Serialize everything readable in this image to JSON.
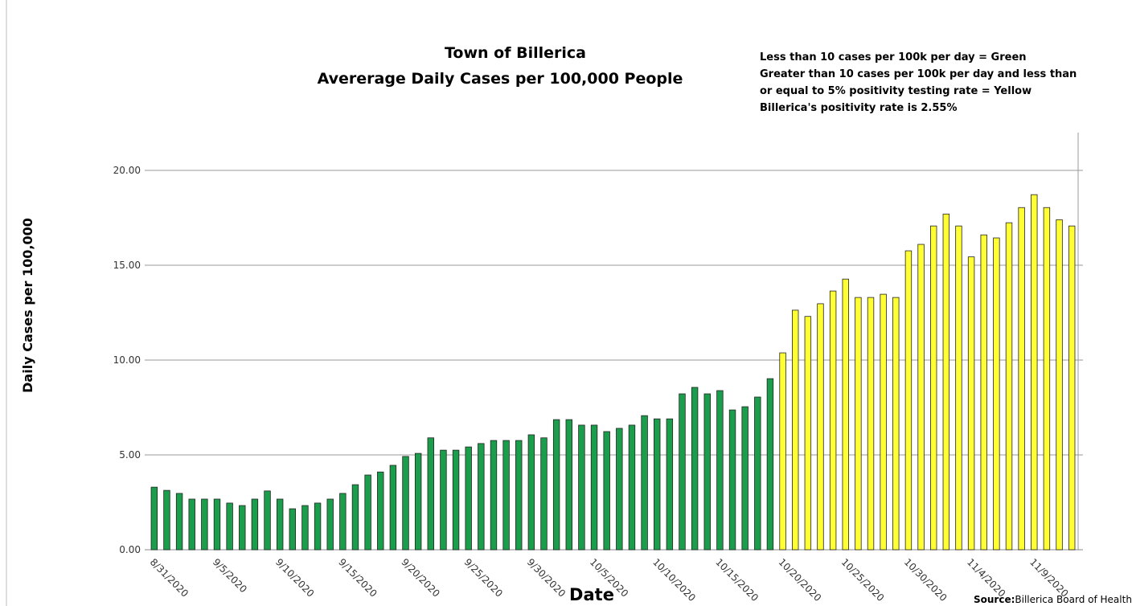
{
  "chart_data": {
    "type": "bar",
    "title": [
      "Town of Billerica",
      "Avererage Daily Cases per 100,000 People"
    ],
    "annotation": [
      "Less than 10 cases per 100k per day = Green",
      "Greater than 10 cases per 100k per day and less than",
      "or equal to 5% positivity testing rate = Yellow",
      "Billerica's positivity rate is 2.55%"
    ],
    "source": {
      "label": "Source:",
      "text": "Billerica Board of Health"
    },
    "y_label": "Daily Cases per 100,000",
    "x_label": "Date",
    "categories": [
      "8/31/2020",
      null,
      null,
      null,
      null,
      "9/5/2020",
      null,
      null,
      null,
      null,
      "9/10/2020",
      null,
      null,
      null,
      null,
      "9/15/2020",
      null,
      null,
      null,
      null,
      "9/20/2020",
      null,
      null,
      null,
      null,
      "9/25/2020",
      null,
      null,
      null,
      null,
      "9/30/2020",
      null,
      null,
      null,
      null,
      "10/5/2020",
      null,
      null,
      null,
      null,
      "10/10/2020",
      null,
      null,
      null,
      null,
      "10/15/2020",
      null,
      null,
      null,
      null,
      "10/20/2020",
      null,
      null,
      null,
      null,
      "10/25/2020",
      null,
      null,
      null,
      null,
      "10/30/2020",
      null,
      null,
      null,
      null,
      "11/4/2020",
      null,
      null,
      null,
      null,
      "11/9/2020",
      null,
      null,
      null
    ],
    "values": [
      3.3,
      3.13,
      2.97,
      2.67,
      2.67,
      2.67,
      2.46,
      2.33,
      2.67,
      3.1,
      2.67,
      2.16,
      2.33,
      2.46,
      2.67,
      2.97,
      3.43,
      3.94,
      4.1,
      4.45,
      4.92,
      5.08,
      5.9,
      5.25,
      5.25,
      5.42,
      5.6,
      5.76,
      5.76,
      5.76,
      6.06,
      5.9,
      6.86,
      6.86,
      6.57,
      6.57,
      6.23,
      6.4,
      6.57,
      7.07,
      6.9,
      6.9,
      8.22,
      8.56,
      8.22,
      8.39,
      7.37,
      7.54,
      8.05,
      9.02,
      10.38,
      12.63,
      12.3,
      12.97,
      13.64,
      14.27,
      13.3,
      13.3,
      13.47,
      13.3,
      15.76,
      16.1,
      17.07,
      17.7,
      17.07,
      15.44,
      16.6,
      16.44,
      17.24,
      18.04,
      18.72,
      18.04,
      17.4,
      17.07
    ],
    "colors": [
      "#1b9e4b",
      "#1b9e4b",
      "#1b9e4b",
      "#1b9e4b",
      "#1b9e4b",
      "#1b9e4b",
      "#1b9e4b",
      "#1b9e4b",
      "#1b9e4b",
      "#1b9e4b",
      "#1b9e4b",
      "#1b9e4b",
      "#1b9e4b",
      "#1b9e4b",
      "#1b9e4b",
      "#1b9e4b",
      "#1b9e4b",
      "#1b9e4b",
      "#1b9e4b",
      "#1b9e4b",
      "#1b9e4b",
      "#1b9e4b",
      "#1b9e4b",
      "#1b9e4b",
      "#1b9e4b",
      "#1b9e4b",
      "#1b9e4b",
      "#1b9e4b",
      "#1b9e4b",
      "#1b9e4b",
      "#1b9e4b",
      "#1b9e4b",
      "#1b9e4b",
      "#1b9e4b",
      "#1b9e4b",
      "#1b9e4b",
      "#1b9e4b",
      "#1b9e4b",
      "#1b9e4b",
      "#1b9e4b",
      "#1b9e4b",
      "#1b9e4b",
      "#1b9e4b",
      "#1b9e4b",
      "#1b9e4b",
      "#1b9e4b",
      "#1b9e4b",
      "#1b9e4b",
      "#1b9e4b",
      "#1b9e4b",
      "#ffff33",
      "#ffff33",
      "#ffff33",
      "#ffff33",
      "#ffff33",
      "#ffff33",
      "#ffff33",
      "#ffff33",
      "#ffff33",
      "#ffff33",
      "#ffff33",
      "#ffff33",
      "#ffff33",
      "#ffff33",
      "#ffff33",
      "#ffff33",
      "#ffff33",
      "#ffff33",
      "#ffff33",
      "#ffff33",
      "#ffff33",
      "#ffff33",
      "#ffff33",
      "#ffff33"
    ],
    "ylim": [
      0,
      20
    ],
    "yticks": [
      {
        "value": 0,
        "label": "0.00"
      },
      {
        "value": 5,
        "label": "5.00"
      },
      {
        "value": 10,
        "label": "10.00"
      },
      {
        "value": 15,
        "label": "15.00"
      },
      {
        "value": 20,
        "label": "20.00"
      }
    ],
    "grid": true
  }
}
